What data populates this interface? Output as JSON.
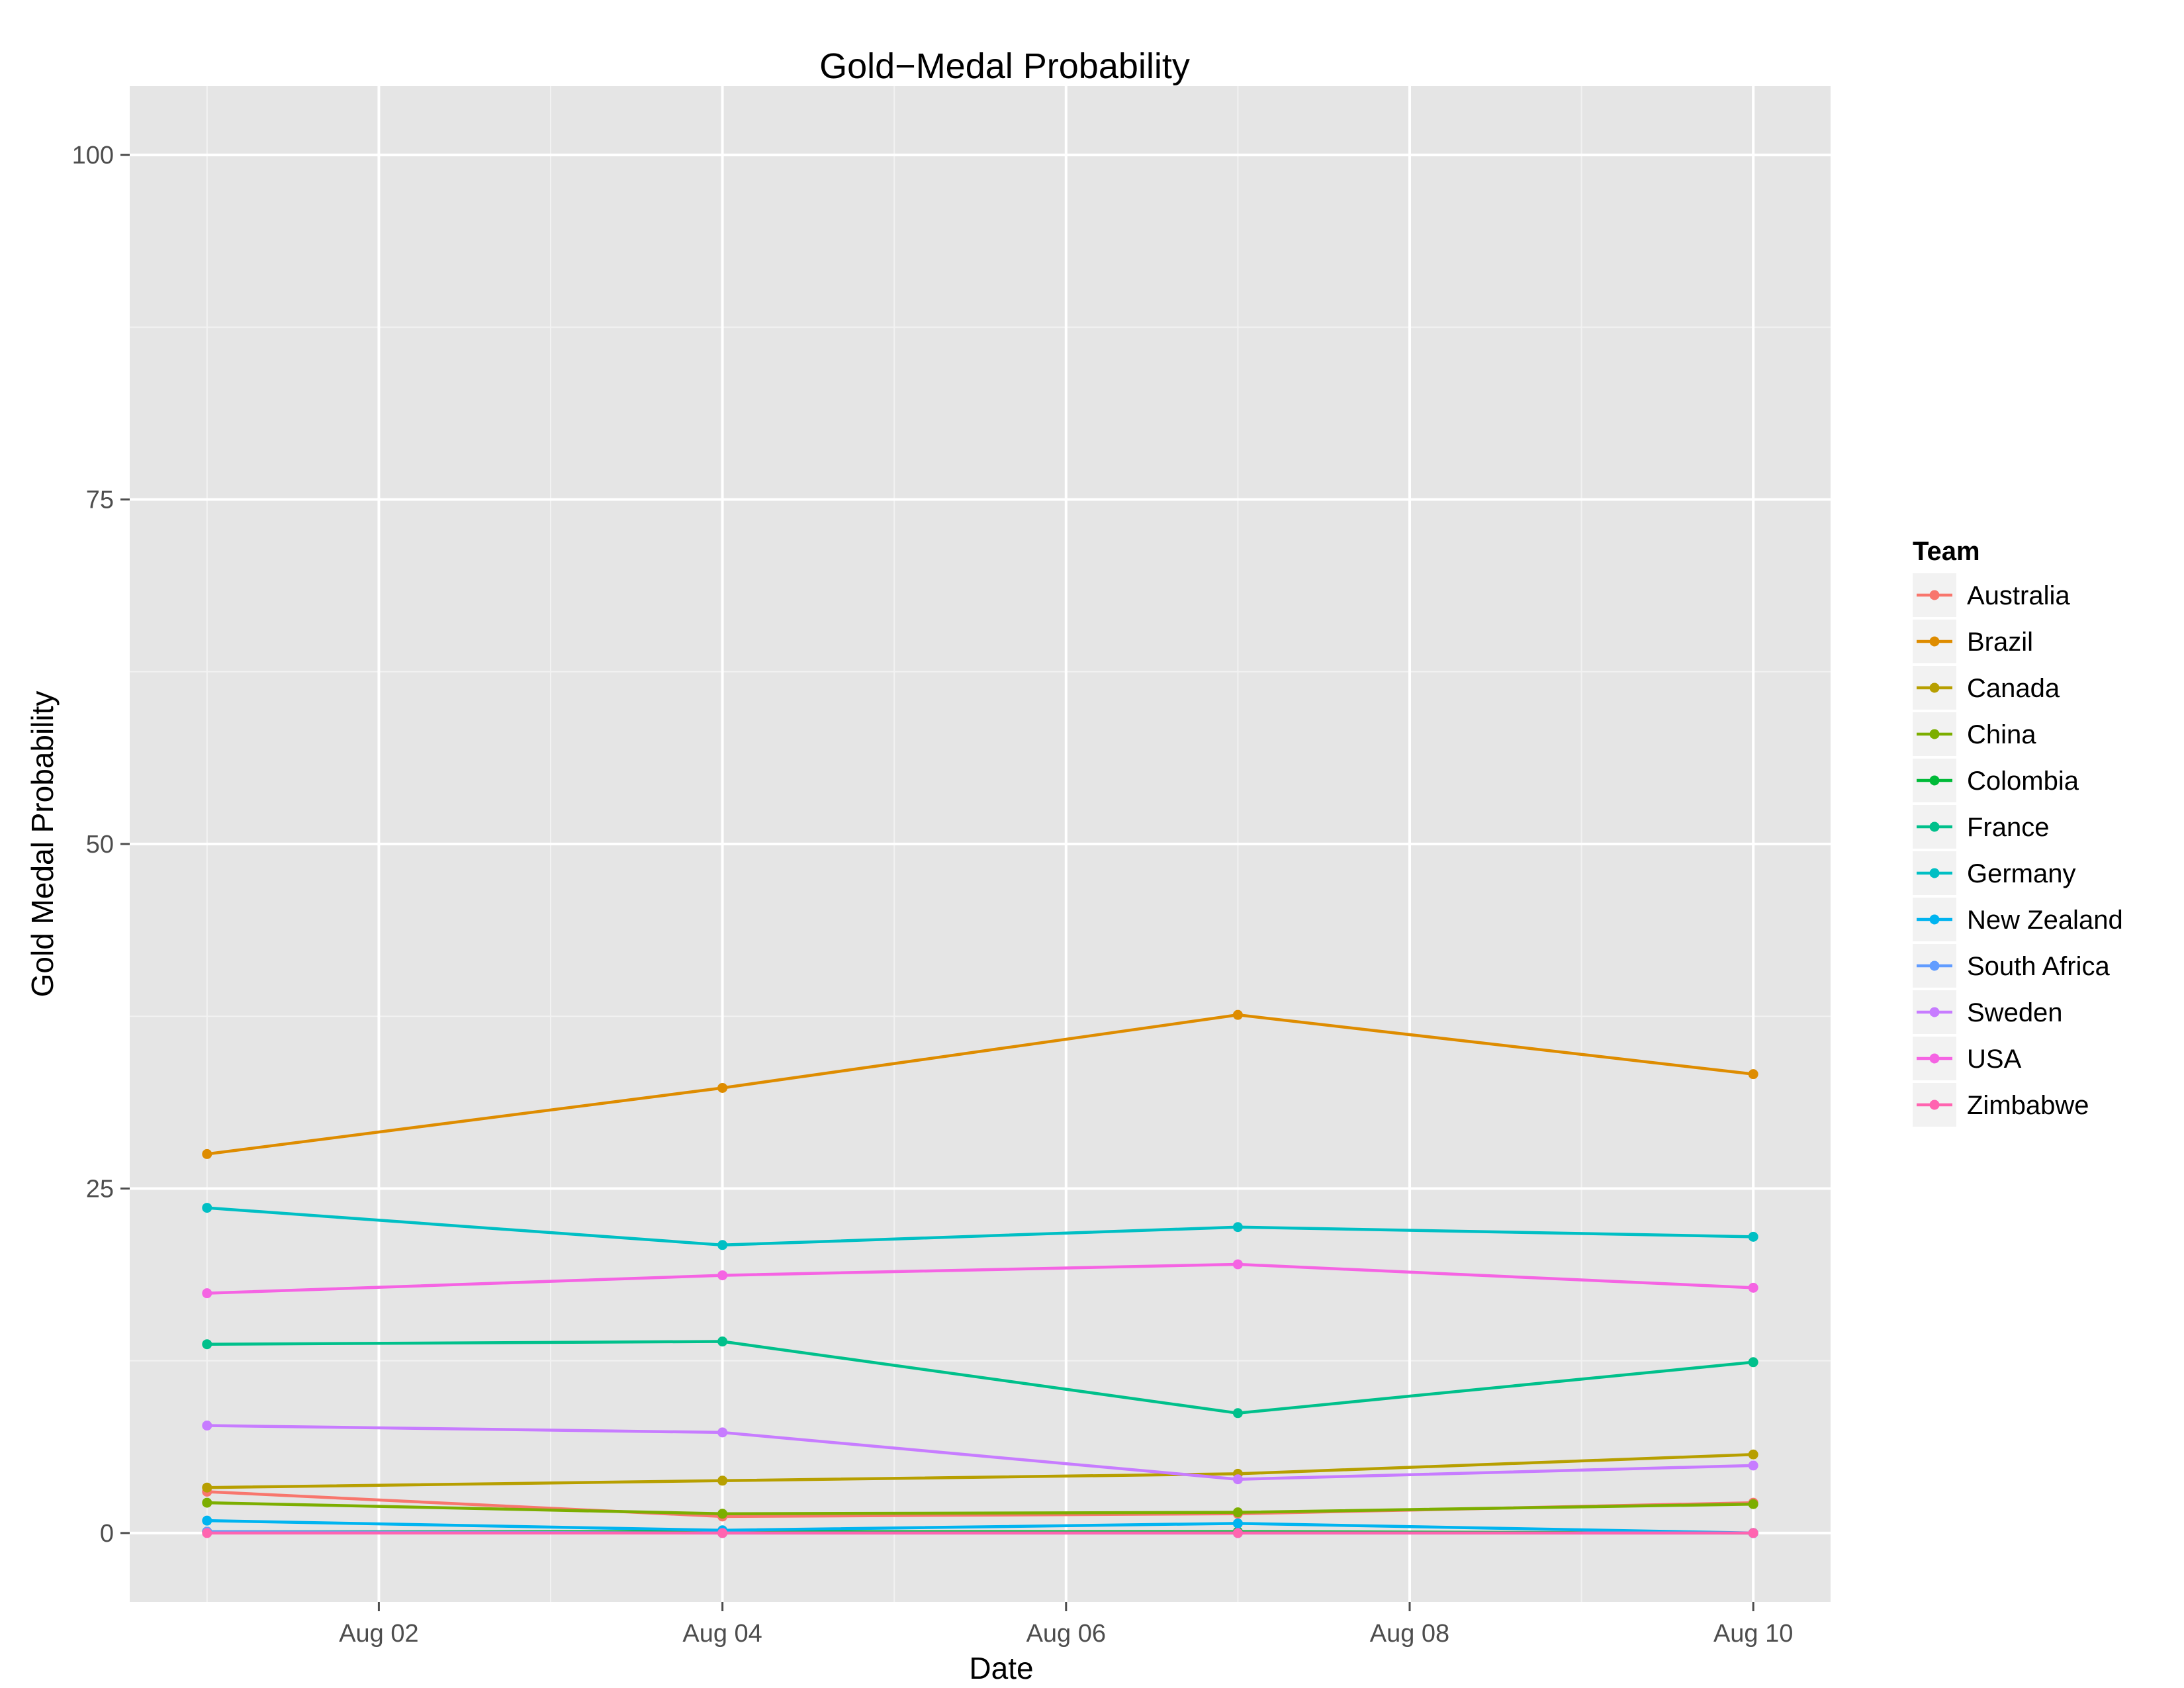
{
  "chart_data": {
    "type": "line",
    "title": "Gold−Medal Probability",
    "xlabel": "Date",
    "ylabel": "Gold Medal Probability",
    "x": [
      "Aug 01",
      "Aug 04",
      "Aug 07",
      "Aug 10"
    ],
    "x_numeric": [
      1,
      4,
      7,
      10
    ],
    "xlim": [
      0.55,
      10.45
    ],
    "ylim": [
      -5,
      105
    ],
    "x_ticks": [
      {
        "value": 2,
        "label": "Aug 02"
      },
      {
        "value": 4,
        "label": "Aug 04"
      },
      {
        "value": 6,
        "label": "Aug 06"
      },
      {
        "value": 8,
        "label": "Aug 08"
      },
      {
        "value": 10,
        "label": "Aug 10"
      }
    ],
    "y_ticks": [
      {
        "value": 0,
        "label": "0"
      },
      {
        "value": 25,
        "label": "25"
      },
      {
        "value": 50,
        "label": "50"
      },
      {
        "value": 75,
        "label": "75"
      },
      {
        "value": 100,
        "label": "100"
      }
    ],
    "grid": true,
    "legend": {
      "title": "Team",
      "position": "right"
    },
    "series": [
      {
        "name": "Australia",
        "color": "#F8766D",
        "values": [
          3.0,
          1.2,
          1.4,
          2.2
        ]
      },
      {
        "name": "Brazil",
        "color": "#DE8C00",
        "values": [
          27.5,
          32.3,
          37.6,
          33.3
        ]
      },
      {
        "name": "Canada",
        "color": "#B79F00",
        "values": [
          3.3,
          3.8,
          4.3,
          5.7
        ]
      },
      {
        "name": "China",
        "color": "#7CAE00",
        "values": [
          2.2,
          1.4,
          1.5,
          2.1
        ]
      },
      {
        "name": "Colombia",
        "color": "#00BA38",
        "values": [
          0.1,
          0.1,
          0.1,
          0.0
        ]
      },
      {
        "name": "France",
        "color": "#00C08B",
        "values": [
          13.7,
          13.9,
          8.7,
          12.4
        ]
      },
      {
        "name": "Germany",
        "color": "#00BFC4",
        "values": [
          23.6,
          20.9,
          22.2,
          21.5
        ]
      },
      {
        "name": "New Zealand",
        "color": "#00B4F0",
        "values": [
          0.9,
          0.2,
          0.7,
          0.0
        ]
      },
      {
        "name": "South Africa",
        "color": "#619CFF",
        "values": [
          0.1,
          0.0,
          0.0,
          0.0
        ]
      },
      {
        "name": "Sweden",
        "color": "#C77CFF",
        "values": [
          7.8,
          7.3,
          3.9,
          4.9
        ]
      },
      {
        "name": "USA",
        "color": "#F564E3",
        "values": [
          17.4,
          18.7,
          19.5,
          17.8
        ]
      },
      {
        "name": "Zimbabwe",
        "color": "#FF64B0",
        "values": [
          0.0,
          0.0,
          0.0,
          0.0
        ]
      }
    ]
  }
}
